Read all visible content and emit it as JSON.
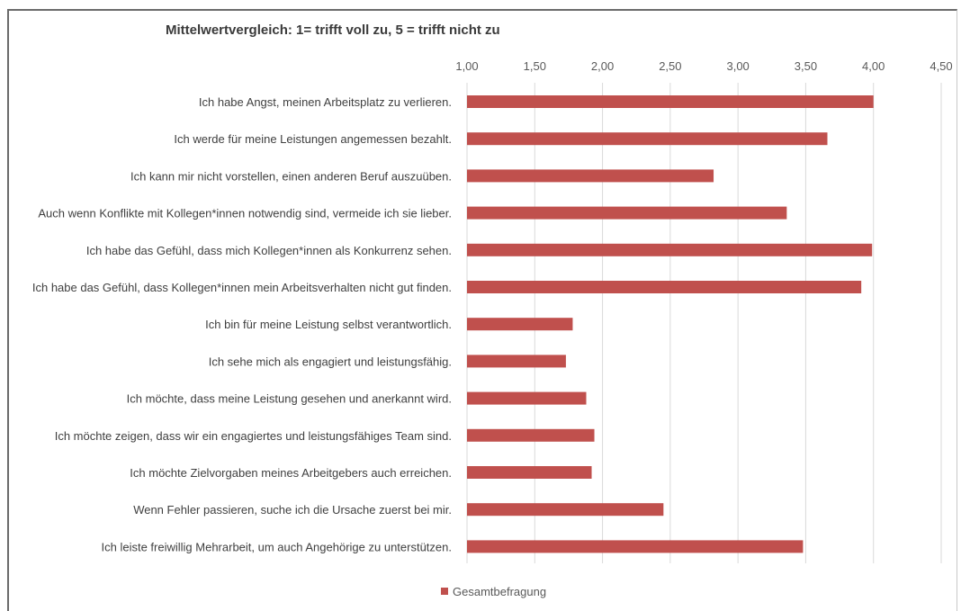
{
  "chart_data": {
    "type": "bar",
    "orientation": "horizontal",
    "title": "Mittelwertvergleich: 1= trifft voll zu, 5 = trifft nicht zu",
    "xlim": [
      1.0,
      4.5
    ],
    "x_ticks": [
      "1,00",
      "1,50",
      "2,00",
      "2,50",
      "3,00",
      "3,50",
      "4,00",
      "4,50"
    ],
    "grid": true,
    "legend_position": "bottom",
    "categories": [
      "Ich habe Angst, meinen Arbeitsplatz zu verlieren.",
      "Ich werde für meine Leistungen angemessen bezahlt.",
      "Ich kann mir nicht vorstellen, einen anderen Beruf auszuüben.",
      "Auch wenn Konflikte mit Kollegen*innen notwendig sind, vermeide ich sie lieber.",
      "Ich habe das Gefühl, dass mich Kollegen*innen als Konkurrenz sehen.",
      "Ich habe das Gefühl, dass Kollegen*innen mein Arbeitsverhalten nicht gut finden.",
      "Ich bin für meine Leistung selbst verantwortlich.",
      "Ich sehe mich als engagiert und leistungsfähig.",
      "Ich möchte, dass meine Leistung gesehen und anerkannt wird.",
      "Ich möchte zeigen, dass wir ein engagiertes und leistungsfähiges Team sind.",
      "Ich möchte Zielvorgaben meines Arbeitgebers auch erreichen.",
      "Wenn Fehler passieren, suche ich die Ursache zuerst bei mir.",
      "Ich leiste freiwillig Mehrarbeit, um auch Angehörige zu unterstützen."
    ],
    "series": [
      {
        "name": "Gesamtbefragung",
        "color": "#c0504d",
        "values": [
          4.0,
          3.66,
          2.82,
          3.36,
          3.99,
          3.91,
          1.78,
          1.73,
          1.88,
          1.94,
          1.92,
          2.45,
          3.48
        ]
      }
    ]
  }
}
